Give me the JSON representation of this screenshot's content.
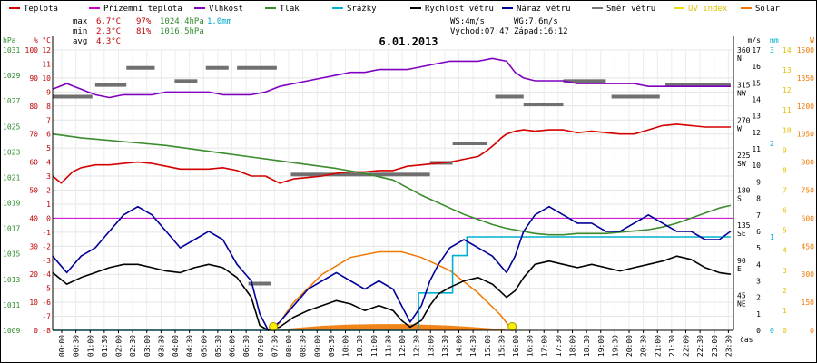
{
  "chart_data": {
    "type": "line",
    "title": "6.01.2013",
    "xlabel": "čas",
    "legend": [
      {
        "name": "Teplota",
        "color": "#d40000"
      },
      {
        "name": "Přízemní teplota",
        "color": "#cc00cc"
      },
      {
        "name": "Vlhkost",
        "color": "#8000c0"
      },
      {
        "name": "Tlak",
        "color": "#3a8c2c"
      },
      {
        "name": "Srážky",
        "color": "#00b0d0"
      },
      {
        "name": "Rychlost větru",
        "color": "#000000"
      },
      {
        "name": "Náraz větru",
        "color": "#000099"
      },
      {
        "name": "Směr větru",
        "color": "#777777"
      },
      {
        "name": "UV index",
        "color": "#f0e000"
      },
      {
        "name": "Solar",
        "color": "#f07800"
      }
    ],
    "stats": {
      "max_label": "max",
      "max_temp": "6.7°C",
      "max_hum": "97%",
      "max_press": "1024.4hPa",
      "max_rain": "1.0mm",
      "min_label": "min",
      "min_temp": "2.3°C",
      "min_hum": "81%",
      "min_press": "1016.5hPa",
      "avg_label": "avg",
      "avg_temp": "4.3°C"
    },
    "wind_info": {
      "ws": "WS:4m/s",
      "wg": "WG:7.6m/s",
      "sunrise": "Východ:07:47",
      "sunset": "Západ:16:12"
    },
    "axes": {
      "hpa": {
        "unit": "hPa",
        "color": "#2e8b2e",
        "ticks": [
          "1031",
          "1029",
          "1027",
          "1025",
          "1023",
          "1021",
          "1019",
          "1017",
          "1015",
          "1013",
          "1011",
          "1009"
        ],
        "range": [
          1009,
          1031
        ]
      },
      "pct": {
        "unit": "%",
        "color": "#c00000",
        "ticks": [
          "100",
          "90",
          "80",
          "70",
          "60",
          "50",
          "40",
          "30",
          "20",
          "10",
          "0"
        ],
        "range": [
          0,
          100
        ]
      },
      "temp": {
        "unit": "°C",
        "color": "#c00000",
        "ticks": [
          "12",
          "11",
          "10",
          "9",
          "8",
          "7",
          "6",
          "5",
          "4",
          "3",
          "2",
          "1",
          "0",
          "-1",
          "-2",
          "-3",
          "-4",
          "-5",
          "-6",
          "-7",
          "-8"
        ],
        "range": [
          -8,
          12
        ]
      },
      "wind": {
        "unit": "m/s",
        "color": "#000000",
        "ticks": [
          "17",
          "16",
          "15",
          "14",
          "13",
          "12",
          "11",
          "10",
          "9",
          "8",
          "7",
          "6",
          "5",
          "4",
          "3",
          "2",
          "1",
          "0"
        ],
        "range": [
          0,
          17
        ]
      },
      "dir": {
        "color": "#000000",
        "ticks": [
          {
            "v": 360,
            "l": "360",
            "d": "N"
          },
          {
            "v": 315,
            "l": "315",
            "d": "NW"
          },
          {
            "v": 270,
            "l": "270",
            "d": "W"
          },
          {
            "v": 225,
            "l": "225",
            "d": "SW"
          },
          {
            "v": 180,
            "l": "180",
            "d": "S"
          },
          {
            "v": 135,
            "l": "135",
            "d": "SE"
          },
          {
            "v": 90,
            "l": "90",
            "d": "E"
          },
          {
            "v": 45,
            "l": "45",
            "d": "NE"
          }
        ],
        "range": [
          0,
          360
        ]
      },
      "mm": {
        "unit": "mm",
        "color": "#00b0d0",
        "ticks": [
          "3",
          "2",
          "1",
          "0"
        ],
        "range": [
          0,
          3
        ]
      },
      "uv": {
        "color": "#e0c000",
        "ticks": [
          "14",
          "13",
          "12",
          "11",
          "10",
          "9",
          "8",
          "7",
          "6",
          "5",
          "4",
          "3",
          "2",
          "1",
          "0"
        ],
        "range": [
          0,
          14
        ]
      },
      "w": {
        "unit": "W",
        "color": "#f07800",
        "ticks": [
          "1500",
          "1350",
          "1200",
          "1050",
          "900",
          "750",
          "600",
          "450",
          "300",
          "150",
          "0"
        ],
        "range": [
          0,
          1500
        ]
      }
    },
    "x_ticks": [
      "00:00",
      "00:30",
      "01:00",
      "01:30",
      "02:00",
      "02:30",
      "03:00",
      "03:30",
      "04:00",
      "04:30",
      "05:00",
      "05:30",
      "06:00",
      "06:30",
      "07:00",
      "07:30",
      "08:00",
      "08:30",
      "09:00",
      "09:30",
      "10:00",
      "10:30",
      "11:00",
      "11:30",
      "12:00",
      "12:30",
      "13:00",
      "13:30",
      "14:00",
      "14:30",
      "15:00",
      "15:30",
      "16:00",
      "16:30",
      "17:00",
      "17:30",
      "18:00",
      "18:30",
      "19:00",
      "19:30",
      "20:00",
      "20:30",
      "21:00",
      "21:30",
      "22:00",
      "22:30",
      "23:00",
      "23:30"
    ],
    "series": [
      {
        "name": "Teplota",
        "axis": "temp",
        "color": "#d40000",
        "x": [
          0,
          0.3,
          0.7,
          1,
          1.5,
          2,
          2.5,
          3,
          3.5,
          4,
          4.5,
          5,
          5.5,
          6,
          6.5,
          7,
          7.5,
          8,
          8.5,
          9,
          9.5,
          10,
          10.5,
          11,
          11.5,
          12,
          12.5,
          13,
          13.5,
          14,
          14.5,
          15,
          15.3,
          15.6,
          15.8,
          16,
          16.3,
          16.6,
          17,
          17.5,
          18,
          18.5,
          19,
          19.5,
          20,
          20.5,
          21,
          21.5,
          22,
          22.5,
          23,
          23.5,
          23.9
        ],
        "y": [
          3.0,
          2.5,
          3.3,
          3.6,
          3.8,
          3.8,
          3.9,
          4.0,
          3.9,
          3.7,
          3.5,
          3.5,
          3.5,
          3.6,
          3.4,
          3.0,
          3.0,
          2.5,
          2.8,
          2.9,
          3.0,
          3.2,
          3.3,
          3.3,
          3.4,
          3.4,
          3.7,
          3.8,
          3.9,
          4.0,
          4.2,
          4.4,
          4.8,
          5.3,
          5.7,
          6.0,
          6.2,
          6.3,
          6.2,
          6.3,
          6.3,
          6.1,
          6.2,
          6.1,
          6.0,
          6.0,
          6.3,
          6.6,
          6.7,
          6.6,
          6.5,
          6.5,
          6.5
        ]
      },
      {
        "name": "Vlhkost",
        "axis": "pct",
        "color": "#8000c0",
        "x": [
          0,
          0.5,
          1,
          1.5,
          2,
          2.5,
          3,
          3.5,
          4,
          4.5,
          5,
          5.5,
          6,
          6.5,
          7,
          7.5,
          8,
          8.5,
          9,
          9.5,
          10,
          10.5,
          11,
          11.5,
          12,
          12.5,
          13,
          13.5,
          14,
          14.5,
          15,
          15.5,
          16,
          16.3,
          16.6,
          17,
          17.5,
          18,
          18.5,
          19,
          19.5,
          20,
          20.5,
          21,
          21.5,
          22,
          22.5,
          23,
          23.5,
          23.9
        ],
        "y": [
          86,
          88,
          86,
          84,
          83,
          84,
          84,
          84,
          85,
          85,
          85,
          85,
          84,
          84,
          84,
          85,
          87,
          88,
          89,
          90,
          91,
          92,
          92,
          93,
          93,
          93,
          94,
          95,
          96,
          96,
          96,
          97,
          96,
          92,
          90,
          89,
          89,
          89,
          88,
          88,
          88,
          88,
          88,
          87,
          87,
          87,
          87,
          87,
          87,
          87
        ]
      },
      {
        "name": "Tlak",
        "axis": "hpa",
        "color": "#3a8c2c",
        "x": [
          0,
          1,
          2,
          3,
          4,
          5,
          6,
          7,
          8,
          9,
          10,
          11,
          12,
          12.5,
          13,
          13.5,
          14,
          14.5,
          15,
          15.5,
          16,
          16.5,
          17,
          17.5,
          18,
          18.5,
          19,
          19.5,
          20,
          20.5,
          21,
          21.5,
          22,
          22.5,
          23,
          23.5,
          23.9
        ],
        "y": [
          1024.4,
          1024.1,
          1023.9,
          1023.7,
          1023.5,
          1023.2,
          1022.9,
          1022.6,
          1022.3,
          1022.0,
          1021.7,
          1021.3,
          1020.8,
          1020.2,
          1019.6,
          1019.1,
          1018.6,
          1018.1,
          1017.7,
          1017.3,
          1017.0,
          1016.8,
          1016.6,
          1016.5,
          1016.5,
          1016.6,
          1016.6,
          1016.6,
          1016.7,
          1016.8,
          1016.9,
          1017.1,
          1017.4,
          1017.8,
          1018.2,
          1018.6,
          1018.8
        ]
      },
      {
        "name": "Srážky",
        "axis": "mm",
        "color": "#00b0d0",
        "x": [
          0,
          12.9,
          12.9,
          14.1,
          14.1,
          14.6,
          14.6,
          23.9
        ],
        "y": [
          0,
          0,
          0.4,
          0.4,
          0.8,
          0.8,
          1.0,
          1.0
        ]
      },
      {
        "name": "Rychlost větru",
        "axis": "wind",
        "color": "#000000",
        "x": [
          0,
          0.5,
          1,
          1.5,
          2,
          2.5,
          3,
          3.5,
          4,
          4.5,
          5,
          5.5,
          6,
          6.5,
          7,
          7.3,
          7.6,
          8,
          8.5,
          9,
          9.5,
          10,
          10.5,
          11,
          11.5,
          12,
          12.3,
          12.6,
          13,
          13.3,
          13.6,
          14,
          14.5,
          15,
          15.5,
          16,
          16.3,
          16.6,
          17,
          17.5,
          18,
          18.5,
          19,
          19.5,
          20,
          20.5,
          21,
          21.5,
          22,
          22.5,
          23,
          23.5,
          23.9
        ],
        "y": [
          3.5,
          2.8,
          3.2,
          3.5,
          3.8,
          4.0,
          4.0,
          3.8,
          3.6,
          3.5,
          3.8,
          4.0,
          3.8,
          3.2,
          2.0,
          0.3,
          0,
          0.2,
          0.8,
          1.2,
          1.5,
          1.8,
          1.6,
          1.2,
          1.5,
          1.2,
          0.6,
          0.2,
          0.6,
          1.5,
          2.2,
          2.6,
          3.0,
          3.2,
          2.8,
          2.0,
          2.4,
          3.2,
          4.0,
          4.2,
          4.0,
          3.8,
          4.0,
          3.8,
          3.6,
          3.8,
          4.0,
          4.2,
          4.5,
          4.3,
          3.8,
          3.5,
          3.4
        ]
      },
      {
        "name": "Náraz větru",
        "axis": "wind",
        "color": "#000099",
        "x": [
          0,
          0.5,
          1,
          1.5,
          2,
          2.5,
          3,
          3.5,
          4,
          4.5,
          5,
          5.5,
          6,
          6.5,
          7,
          7.3,
          7.6,
          8,
          8.5,
          9,
          9.5,
          10,
          10.5,
          11,
          11.5,
          12,
          12.3,
          12.6,
          13,
          13.3,
          13.6,
          14,
          14.5,
          15,
          15.5,
          16,
          16.3,
          16.6,
          17,
          17.5,
          18,
          18.5,
          19,
          19.5,
          20,
          20.5,
          21,
          21.5,
          22,
          22.5,
          23,
          23.5,
          23.9
        ],
        "y": [
          4.5,
          3.5,
          4.5,
          5.0,
          6.0,
          7.0,
          7.5,
          7.0,
          6.0,
          5.0,
          5.5,
          6.0,
          5.5,
          4.0,
          3.0,
          1.0,
          0,
          0.5,
          1.5,
          2.5,
          3.0,
          3.5,
          3.0,
          2.5,
          3.0,
          2.5,
          1.5,
          0.5,
          1.5,
          3.0,
          4.0,
          5.0,
          5.5,
          5.0,
          4.5,
          3.5,
          4.5,
          6.0,
          7.0,
          7.5,
          7.0,
          6.5,
          6.5,
          6.0,
          6.0,
          6.5,
          7.0,
          6.5,
          6.0,
          6.0,
          5.5,
          5.5,
          6.0
        ]
      },
      {
        "name": "Solar",
        "axis": "w",
        "color": "#f07800",
        "x": [
          7.8,
          8.5,
          9.5,
          10.5,
          11.5,
          12.3,
          13,
          14,
          15,
          15.8,
          16.2
        ],
        "y": [
          0,
          150,
          300,
          390,
          420,
          420,
          390,
          320,
          200,
          80,
          0
        ]
      }
    ],
    "wind_direction": [
      {
        "x0": 0.0,
        "x1": 1.4,
        "deg": 300
      },
      {
        "x0": 1.5,
        "x1": 2.6,
        "deg": 315
      },
      {
        "x0": 2.6,
        "x1": 3.6,
        "deg": 337
      },
      {
        "x0": 4.3,
        "x1": 5.1,
        "deg": 320
      },
      {
        "x0": 5.4,
        "x1": 6.2,
        "deg": 337
      },
      {
        "x0": 6.5,
        "x1": 7.9,
        "deg": 337
      },
      {
        "x0": 6.9,
        "x1": 7.7,
        "deg": 60
      },
      {
        "x0": 8.4,
        "x1": 13.3,
        "deg": 200
      },
      {
        "x0": 13.3,
        "x1": 14.1,
        "deg": 215
      },
      {
        "x0": 14.1,
        "x1": 15.3,
        "deg": 240
      },
      {
        "x0": 15.6,
        "x1": 16.6,
        "deg": 300
      },
      {
        "x0": 16.6,
        "x1": 18.0,
        "deg": 290
      },
      {
        "x0": 18.0,
        "x1": 19.5,
        "deg": 320
      },
      {
        "x0": 19.7,
        "x1": 21.4,
        "deg": 300
      },
      {
        "x0": 21.6,
        "x1": 23.9,
        "deg": 315
      }
    ],
    "sun_markers": [
      {
        "x": 7.78,
        "label": "sunrise"
      },
      {
        "x": 16.2,
        "label": "sunset"
      }
    ]
  }
}
